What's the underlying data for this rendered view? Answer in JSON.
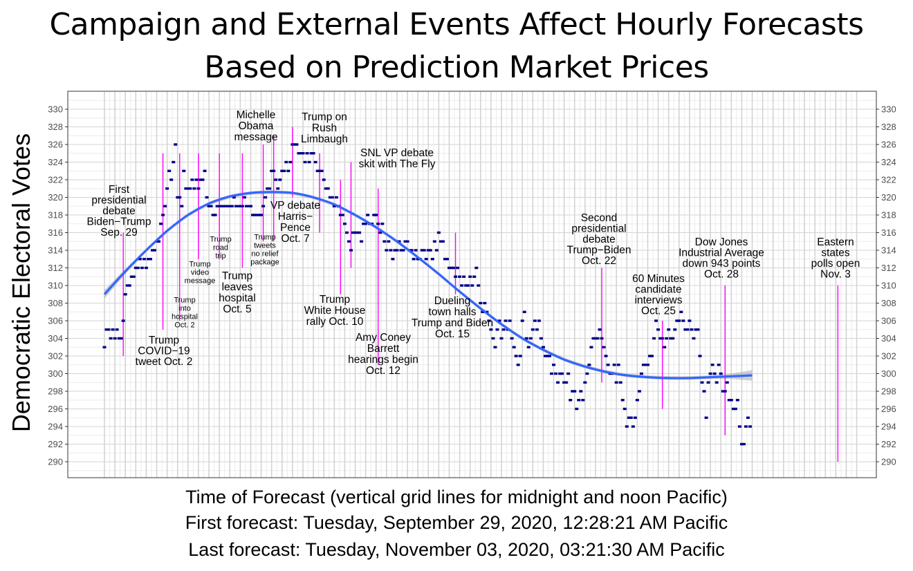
{
  "title": {
    "line1": "Campaign and External Events Affect Hourly Forecasts",
    "line2": "Based on Prediction Market Prices"
  },
  "caption": {
    "line1": "Time of Forecast (vertical grid lines for midnight and noon Pacific)",
    "line2": "First forecast: Tuesday, September 29, 2020, 12:28:21 AM Pacific",
    "line3": "Last forecast: Tuesday, November 03, 2020, 03:21:30 AM Pacific"
  },
  "colors": {
    "points": "#00008B",
    "event_lines": "#FF00FF",
    "smooth_line": "#3366FF",
    "confidence_band": "#999999",
    "grid_major": "#D3D3D3",
    "grid_minor": "#EBEBEB"
  },
  "chart_data": {
    "type": "scatter",
    "ylabel": "Democratic Electoral Votes",
    "xlabel": "Time of Forecast (vertical grid lines for midnight and noon Pacific)",
    "x_unit": "days since first forecast (Sep. 29, 2020, 12:28 AM Pacific)",
    "ylim": [
      289,
      332
    ],
    "xlim": [
      0,
      35.12
    ],
    "y_ticks": [
      290,
      292,
      294,
      296,
      298,
      300,
      302,
      304,
      306,
      308,
      310,
      312,
      314,
      316,
      318,
      320,
      322,
      324,
      326,
      328,
      330
    ],
    "grid": true,
    "y_axis_both_sides": true,
    "points": [
      [
        0.0,
        303
      ],
      [
        0.1,
        305
      ],
      [
        0.2,
        305
      ],
      [
        0.3,
        304
      ],
      [
        0.4,
        305
      ],
      [
        0.5,
        304
      ],
      [
        0.6,
        305
      ],
      [
        0.7,
        304
      ],
      [
        0.8,
        304
      ],
      [
        0.9,
        306
      ],
      [
        1.0,
        309
      ],
      [
        1.1,
        310
      ],
      [
        1.2,
        310
      ],
      [
        1.3,
        311
      ],
      [
        1.4,
        311
      ],
      [
        1.5,
        312
      ],
      [
        1.6,
        312
      ],
      [
        1.7,
        313
      ],
      [
        1.8,
        312
      ],
      [
        1.9,
        313
      ],
      [
        2.0,
        312
      ],
      [
        2.1,
        313
      ],
      [
        2.2,
        313
      ],
      [
        2.3,
        314
      ],
      [
        2.4,
        314
      ],
      [
        2.5,
        315
      ],
      [
        2.6,
        315
      ],
      [
        2.7,
        317
      ],
      [
        2.8,
        318
      ],
      [
        2.9,
        319
      ],
      [
        3.0,
        321
      ],
      [
        3.1,
        323
      ],
      [
        3.2,
        322
      ],
      [
        3.3,
        324
      ],
      [
        3.4,
        326
      ],
      [
        3.5,
        320
      ],
      [
        3.6,
        320
      ],
      [
        3.7,
        319
      ],
      [
        3.8,
        323
      ],
      [
        3.9,
        321
      ],
      [
        4.0,
        321
      ],
      [
        4.1,
        321
      ],
      [
        4.2,
        322
      ],
      [
        4.3,
        321
      ],
      [
        4.4,
        322
      ],
      [
        4.5,
        321
      ],
      [
        4.6,
        322
      ],
      [
        4.7,
        322
      ],
      [
        4.8,
        323
      ],
      [
        4.9,
        320
      ],
      [
        5.0,
        319
      ],
      [
        5.1,
        319
      ],
      [
        5.2,
        318
      ],
      [
        5.3,
        318
      ],
      [
        5.4,
        319
      ],
      [
        5.5,
        319
      ],
      [
        5.6,
        319
      ],
      [
        5.7,
        319
      ],
      [
        5.8,
        319
      ],
      [
        5.9,
        319
      ],
      [
        6.0,
        319
      ],
      [
        6.1,
        319
      ],
      [
        6.2,
        320
      ],
      [
        6.3,
        319
      ],
      [
        6.4,
        319
      ],
      [
        6.5,
        319
      ],
      [
        6.6,
        319
      ],
      [
        6.7,
        320
      ],
      [
        6.8,
        319
      ],
      [
        6.9,
        319
      ],
      [
        7.0,
        319
      ],
      [
        7.1,
        318
      ],
      [
        7.2,
        318
      ],
      [
        7.3,
        318
      ],
      [
        7.4,
        318
      ],
      [
        7.5,
        318
      ],
      [
        7.6,
        319
      ],
      [
        7.7,
        320
      ],
      [
        7.8,
        321
      ],
      [
        7.9,
        321
      ],
      [
        8.0,
        323
      ],
      [
        8.1,
        323
      ],
      [
        8.2,
        322
      ],
      [
        8.3,
        321
      ],
      [
        8.4,
        322
      ],
      [
        8.5,
        323
      ],
      [
        8.6,
        323
      ],
      [
        8.7,
        324
      ],
      [
        8.8,
        323
      ],
      [
        8.9,
        324
      ],
      [
        9.0,
        326
      ],
      [
        9.1,
        326
      ],
      [
        9.2,
        326
      ],
      [
        9.3,
        325
      ],
      [
        9.4,
        325
      ],
      [
        9.5,
        325
      ],
      [
        9.6,
        324
      ],
      [
        9.7,
        325
      ],
      [
        9.8,
        324
      ],
      [
        9.9,
        325
      ],
      [
        10.0,
        325
      ],
      [
        10.1,
        324
      ],
      [
        10.2,
        323
      ],
      [
        10.3,
        323
      ],
      [
        10.4,
        323
      ],
      [
        10.5,
        322
      ],
      [
        10.6,
        321
      ],
      [
        10.7,
        321
      ],
      [
        10.8,
        320
      ],
      [
        10.9,
        320
      ],
      [
        11.0,
        319
      ],
      [
        11.1,
        320
      ],
      [
        11.2,
        319
      ],
      [
        11.3,
        318
      ],
      [
        11.4,
        318
      ],
      [
        11.5,
        317
      ],
      [
        11.6,
        316
      ],
      [
        11.7,
        315
      ],
      [
        11.8,
        314
      ],
      [
        11.9,
        316
      ],
      [
        12.0,
        316
      ],
      [
        12.1,
        316
      ],
      [
        12.2,
        316
      ],
      [
        12.3,
        315
      ],
      [
        12.4,
        317
      ],
      [
        12.5,
        317
      ],
      [
        12.6,
        318
      ],
      [
        12.7,
        317
      ],
      [
        12.8,
        317
      ],
      [
        12.9,
        318
      ],
      [
        13.0,
        318
      ],
      [
        13.1,
        317
      ],
      [
        13.2,
        316
      ],
      [
        13.3,
        317
      ],
      [
        13.4,
        315
      ],
      [
        13.5,
        314
      ],
      [
        13.6,
        315
      ],
      [
        13.7,
        314
      ],
      [
        13.8,
        313
      ],
      [
        13.9,
        314
      ],
      [
        14.0,
        314
      ],
      [
        14.1,
        315
      ],
      [
        14.2,
        314
      ],
      [
        14.3,
        314
      ],
      [
        14.4,
        315
      ],
      [
        14.5,
        315
      ],
      [
        14.6,
        314
      ],
      [
        14.7,
        314
      ],
      [
        14.8,
        313
      ],
      [
        14.9,
        314
      ],
      [
        15.0,
        313
      ],
      [
        15.1,
        313
      ],
      [
        15.2,
        314
      ],
      [
        15.3,
        314
      ],
      [
        15.4,
        313
      ],
      [
        15.5,
        314
      ],
      [
        15.6,
        314
      ],
      [
        15.7,
        313
      ],
      [
        15.8,
        315
      ],
      [
        15.9,
        314
      ],
      [
        16.0,
        316
      ],
      [
        16.1,
        315
      ],
      [
        16.2,
        315
      ],
      [
        16.3,
        313
      ],
      [
        16.4,
        313
      ],
      [
        16.5,
        312
      ],
      [
        16.6,
        312
      ],
      [
        16.7,
        312
      ],
      [
        16.8,
        311
      ],
      [
        16.9,
        312
      ],
      [
        17.0,
        311
      ],
      [
        17.1,
        310
      ],
      [
        17.2,
        311
      ],
      [
        17.3,
        310
      ],
      [
        17.4,
        310
      ],
      [
        17.5,
        311
      ],
      [
        17.6,
        310
      ],
      [
        17.7,
        311
      ],
      [
        17.8,
        312
      ],
      [
        17.9,
        310
      ],
      [
        18.0,
        308
      ],
      [
        18.1,
        307
      ],
      [
        18.2,
        308
      ],
      [
        18.3,
        307
      ],
      [
        18.4,
        306
      ],
      [
        18.5,
        305
      ],
      [
        18.6,
        304
      ],
      [
        18.7,
        303
      ],
      [
        18.8,
        305
      ],
      [
        18.9,
        306
      ],
      [
        19.0,
        304
      ],
      [
        19.1,
        305
      ],
      [
        19.2,
        306
      ],
      [
        19.3,
        305
      ],
      [
        19.4,
        306
      ],
      [
        19.5,
        304
      ],
      [
        19.6,
        303
      ],
      [
        19.7,
        302
      ],
      [
        19.8,
        301
      ],
      [
        19.9,
        302
      ],
      [
        20.0,
        306
      ],
      [
        20.1,
        307
      ],
      [
        20.2,
        304
      ],
      [
        20.3,
        303
      ],
      [
        20.4,
        304
      ],
      [
        20.5,
        305
      ],
      [
        20.6,
        306
      ],
      [
        20.7,
        305
      ],
      [
        20.8,
        306
      ],
      [
        20.9,
        304
      ],
      [
        21.0,
        303
      ],
      [
        21.1,
        302
      ],
      [
        21.2,
        302
      ],
      [
        21.3,
        302
      ],
      [
        21.4,
        300
      ],
      [
        21.5,
        301
      ],
      [
        21.6,
        300
      ],
      [
        21.7,
        299
      ],
      [
        21.8,
        300
      ],
      [
        21.9,
        300
      ],
      [
        22.0,
        299
      ],
      [
        22.1,
        299
      ],
      [
        22.2,
        300
      ],
      [
        22.3,
        297
      ],
      [
        22.4,
        298
      ],
      [
        22.5,
        298
      ],
      [
        22.6,
        296
      ],
      [
        22.7,
        297
      ],
      [
        22.8,
        298
      ],
      [
        22.9,
        297
      ],
      [
        23.0,
        299
      ],
      [
        23.1,
        300
      ],
      [
        23.2,
        301
      ],
      [
        23.3,
        303
      ],
      [
        23.4,
        304
      ],
      [
        23.5,
        304
      ],
      [
        23.6,
        304
      ],
      [
        23.7,
        305
      ],
      [
        23.8,
        304
      ],
      [
        23.9,
        303
      ],
      [
        24.0,
        302
      ],
      [
        24.1,
        301
      ],
      [
        24.2,
        300
      ],
      [
        24.3,
        300
      ],
      [
        24.4,
        301
      ],
      [
        24.5,
        299
      ],
      [
        24.6,
        301
      ],
      [
        24.7,
        299
      ],
      [
        24.8,
        297
      ],
      [
        24.9,
        296
      ],
      [
        25.0,
        294
      ],
      [
        25.1,
        295
      ],
      [
        25.2,
        295
      ],
      [
        25.3,
        294
      ],
      [
        25.4,
        295
      ],
      [
        25.5,
        297
      ],
      [
        25.6,
        298
      ],
      [
        25.7,
        300
      ],
      [
        25.8,
        301
      ],
      [
        25.9,
        301
      ],
      [
        26.0,
        301
      ],
      [
        26.1,
        302
      ],
      [
        26.2,
        302
      ],
      [
        26.3,
        304
      ],
      [
        26.4,
        306
      ],
      [
        26.5,
        305
      ],
      [
        26.6,
        304
      ],
      [
        26.7,
        304
      ],
      [
        26.8,
        303
      ],
      [
        26.9,
        304
      ],
      [
        27.0,
        305
      ],
      [
        27.1,
        304
      ],
      [
        27.2,
        304
      ],
      [
        27.3,
        305
      ],
      [
        27.4,
        306
      ],
      [
        27.5,
        306
      ],
      [
        27.6,
        307
      ],
      [
        27.7,
        306
      ],
      [
        27.8,
        305
      ],
      [
        27.9,
        305
      ],
      [
        28.0,
        306
      ],
      [
        28.1,
        305
      ],
      [
        28.2,
        304
      ],
      [
        28.3,
        305
      ],
      [
        28.4,
        305
      ],
      [
        28.5,
        302
      ],
      [
        28.6,
        299
      ],
      [
        28.7,
        298
      ],
      [
        28.8,
        295
      ],
      [
        28.9,
        299
      ],
      [
        29.0,
        300
      ],
      [
        29.1,
        301
      ],
      [
        29.2,
        300
      ],
      [
        29.3,
        299
      ],
      [
        29.4,
        301
      ],
      [
        29.5,
        300
      ],
      [
        29.6,
        298
      ],
      [
        29.7,
        298
      ],
      [
        29.8,
        299
      ],
      [
        29.9,
        297
      ],
      [
        30.0,
        297
      ],
      [
        30.1,
        296
      ],
      [
        30.2,
        296
      ],
      [
        30.3,
        297
      ],
      [
        30.4,
        294
      ],
      [
        30.5,
        292
      ],
      [
        30.6,
        292
      ],
      [
        30.7,
        294
      ],
      [
        30.8,
        295
      ],
      [
        30.9,
        294
      ]
    ],
    "smooth": {
      "x": [
        0,
        1,
        2,
        3,
        4,
        5,
        6,
        7,
        8,
        9,
        10,
        11,
        12,
        13,
        14,
        15,
        16,
        17,
        18,
        19,
        20,
        21,
        22,
        23,
        24,
        25,
        26,
        27,
        28,
        29,
        30,
        31
      ],
      "y": [
        309.0,
        311.6,
        314.0,
        316.2,
        318.0,
        319.3,
        320.1,
        320.5,
        320.6,
        320.5,
        320.0,
        319.2,
        318.0,
        316.6,
        315.0,
        313.2,
        311.3,
        309.3,
        307.4,
        305.6,
        304.0,
        302.7,
        301.6,
        300.8,
        300.2,
        299.8,
        299.6,
        299.5,
        299.5,
        299.6,
        299.7,
        299.8
      ],
      "band": [
        0.5,
        0.3,
        0.2,
        0.2,
        0.2,
        0.2,
        0.2,
        0.2,
        0.2,
        0.2,
        0.2,
        0.2,
        0.2,
        0.2,
        0.2,
        0.2,
        0.2,
        0.2,
        0.2,
        0.2,
        0.2,
        0.2,
        0.2,
        0.2,
        0.2,
        0.2,
        0.2,
        0.2,
        0.2,
        0.2,
        0.3,
        0.6
      ]
    },
    "events": [
      {
        "x": 0.9,
        "y_from": 302,
        "y_to": 316,
        "lines": [
          "First",
          "presidential",
          "debate",
          "Biden−Trump",
          "Sep. 29"
        ]
      },
      {
        "x": 2.8,
        "y_from": 305,
        "y_to": 325,
        "lines": [
          "Trump",
          "COVID−19",
          "tweet Oct. 2"
        ]
      },
      {
        "x": 3.6,
        "y_from": 306,
        "y_to": 325,
        "lines": [
          "Trump",
          "into",
          "hospital",
          "Oct. 2"
        ]
      },
      {
        "x": 4.5,
        "y_from": 313,
        "y_to": 325,
        "lines": [
          "Trump",
          "video",
          "message"
        ]
      },
      {
        "x": 5.5,
        "y_from": 313,
        "y_to": 325,
        "lines": [
          "Trump",
          "road",
          "trip"
        ]
      },
      {
        "x": 6.6,
        "y_from": 312,
        "y_to": 325,
        "lines": [
          "Trump",
          "leaves",
          "hospital",
          "Oct. 5"
        ]
      },
      {
        "x": 7.6,
        "y_from": 315,
        "y_to": 326,
        "lines": [
          "Trump",
          "tweets",
          "no relief",
          "package"
        ]
      },
      {
        "x": 8.1,
        "y_from": 315,
        "y_to": 327,
        "lines": [
          "Michelle",
          "Obama",
          "message"
        ]
      },
      {
        "x": 9.0,
        "y_from": 320,
        "y_to": 328,
        "lines": [
          "VP debate",
          "Harris−",
          "Pence",
          "Oct. 7"
        ]
      },
      {
        "x": 10.3,
        "y_from": 316,
        "y_to": 325,
        "lines": [
          "Trump on",
          "Rush",
          "Limbaugh"
        ]
      },
      {
        "x": 11.3,
        "y_from": 309,
        "y_to": 322,
        "lines": [
          "Trump",
          "White House",
          "rally Oct. 10"
        ]
      },
      {
        "x": 11.8,
        "y_from": 312,
        "y_to": 324,
        "lines": [
          "SNL VP debate",
          "skit with The Fly"
        ]
      },
      {
        "x": 13.1,
        "y_from": 301,
        "y_to": 321,
        "lines": [
          "Amy Coney",
          "Barrett",
          "hearings begin",
          "Oct. 12"
        ]
      },
      {
        "x": 16.8,
        "y_from": 309,
        "y_to": 316,
        "lines": [
          "Dueling",
          "town halls",
          "Trump and Biden",
          "Oct. 15"
        ]
      },
      {
        "x": 23.8,
        "y_from": 299,
        "y_to": 312,
        "lines": [
          "Second",
          "presidential",
          "debate",
          "Trump−Biden",
          "Oct. 22"
        ]
      },
      {
        "x": 26.7,
        "y_from": 296,
        "y_to": 306,
        "lines": [
          "60 Minutes",
          "candidate",
          "interviews",
          "Oct. 25"
        ]
      },
      {
        "x": 29.7,
        "y_from": 293,
        "y_to": 310,
        "lines": [
          "Dow Jones",
          "Industrial Average",
          "down 943 points",
          "Oct. 28"
        ]
      },
      {
        "x": 35.1,
        "y_from": 290,
        "y_to": 310,
        "lines": [
          "Eastern",
          "states",
          "polls open",
          "Nov. 3"
        ]
      }
    ]
  }
}
